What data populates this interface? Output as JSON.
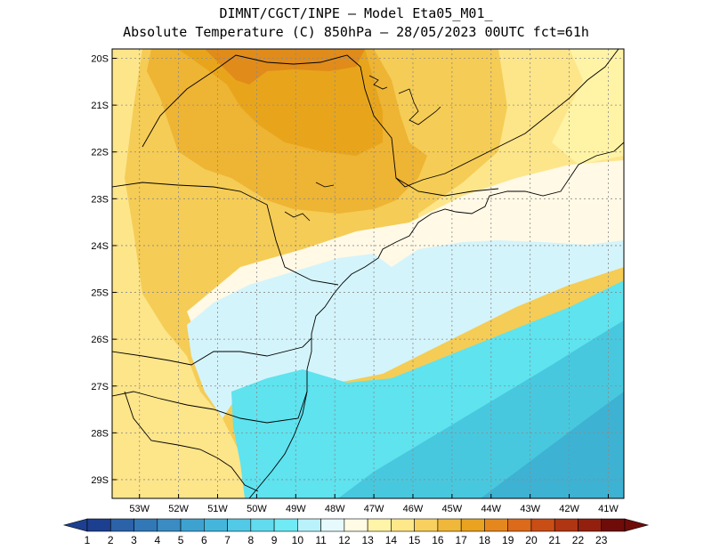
{
  "title": {
    "line1": "DIMNT/CGCT/INPE –  Model Eta05_M01_",
    "line2": "Absolute Temperature (C) 850hPa –  28/05/2023 00UTC fct=61h"
  },
  "map": {
    "lat_range": [
      -29.4,
      -19.8
    ],
    "lon_range": [
      -53.7,
      -40.6
    ],
    "lat_ticks": [
      {
        "value": -20,
        "label": "20S"
      },
      {
        "value": -21,
        "label": "21S"
      },
      {
        "value": -22,
        "label": "22S"
      },
      {
        "value": -23,
        "label": "23S"
      },
      {
        "value": -24,
        "label": "24S"
      },
      {
        "value": -25,
        "label": "25S"
      },
      {
        "value": -26,
        "label": "26S"
      },
      {
        "value": -27,
        "label": "27S"
      },
      {
        "value": -28,
        "label": "28S"
      },
      {
        "value": -29,
        "label": "29S"
      }
    ],
    "lon_ticks": [
      {
        "value": -53,
        "label": "53W"
      },
      {
        "value": -52,
        "label": "52W"
      },
      {
        "value": -51,
        "label": "51W"
      },
      {
        "value": -50,
        "label": "50W"
      },
      {
        "value": -49,
        "label": "49W"
      },
      {
        "value": -48,
        "label": "48W"
      },
      {
        "value": -47,
        "label": "47W"
      },
      {
        "value": -46,
        "label": "46W"
      },
      {
        "value": -45,
        "label": "45W"
      },
      {
        "value": -44,
        "label": "44W"
      },
      {
        "value": -43,
        "label": "43W"
      },
      {
        "value": -42,
        "label": "42W"
      },
      {
        "value": -41,
        "label": "41W"
      }
    ],
    "grid": "dotted",
    "field_colors": {
      "t9": "#48c8de",
      "t10": "#5ee3ef",
      "t11": "#d4f4fb",
      "t12": "#fff9e6",
      "t13": "#fff3a6",
      "t14": "#fde58a",
      "t15": "#f5cc55",
      "t16": "#eeb433",
      "t17": "#e8a51c",
      "t18": "#e08b1a",
      "t8": "#3eb2d3"
    }
  },
  "colorbar": {
    "labels": [
      "1",
      "2",
      "3",
      "4",
      "5",
      "6",
      "7",
      "8",
      "9",
      "10",
      "11",
      "12",
      "13",
      "14",
      "15",
      "16",
      "17",
      "18",
      "19",
      "20",
      "21",
      "22",
      "23"
    ],
    "colors": [
      "#1d3f8f",
      "#2b62a8",
      "#3278b6",
      "#3a8cc3",
      "#3ea2d0",
      "#44b6dc",
      "#52c9e6",
      "#62dbee",
      "#70eaf5",
      "#b9f2fb",
      "#e6fafd",
      "#fffbe4",
      "#fff4a8",
      "#fee88a",
      "#f7d060",
      "#f0b83a",
      "#e9a320",
      "#e4881e",
      "#db6a1a",
      "#c94e16",
      "#b03512",
      "#93200f",
      "#6e0c0a"
    ],
    "left_arrow_color": "#1d3f8f",
    "right_arrow_color": "#6e0c0a"
  }
}
